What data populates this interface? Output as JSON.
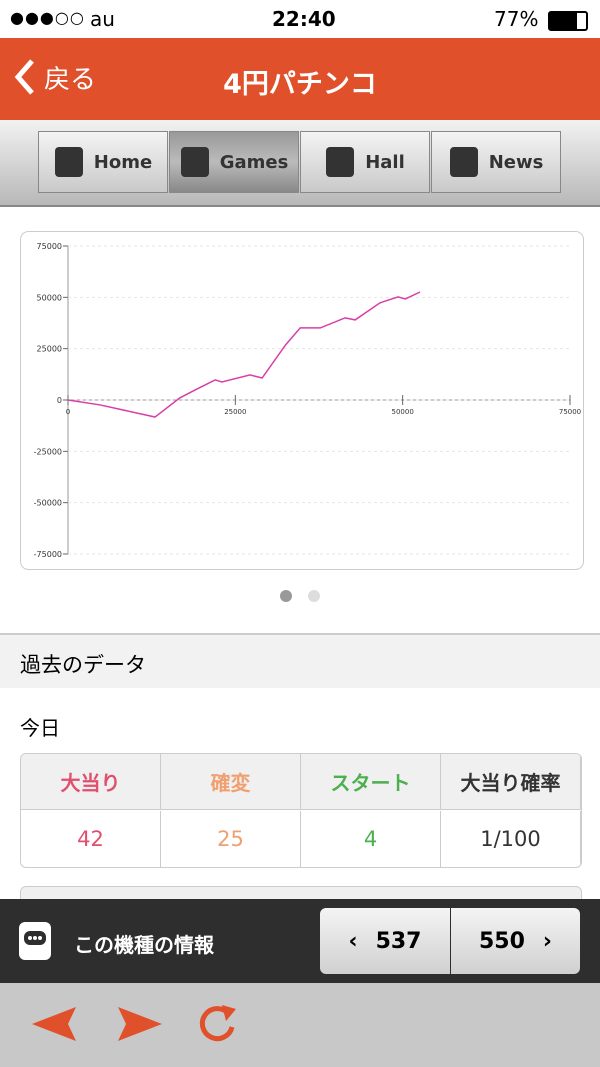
{
  "status_bar": {
    "carrier": "au",
    "time": "22:40",
    "battery": "77%"
  },
  "nav": {
    "back": "戻る",
    "title": "4円パチンコ"
  },
  "tabs": [
    "Home",
    "Games",
    "Hall",
    "News"
  ],
  "chart_data": {
    "type": "line",
    "x": [
      0,
      4800,
      13000,
      16700,
      19000,
      22000,
      23000,
      27200,
      29000,
      32500,
      34700,
      37700,
      41400,
      42900,
      46600,
      49300,
      50400,
      52600
    ],
    "series": [
      {
        "color": "#d63fa8",
        "values": [
          0,
          -2400,
          -8300,
          1000,
          4900,
          9800,
          8800,
          12200,
          10700,
          26800,
          35100,
          35100,
          40000,
          39000,
          47300,
          50200,
          49200,
          52600
        ]
      }
    ],
    "xlim": [
      0,
      75000
    ],
    "xticks": [
      0,
      25000,
      50000,
      75000
    ],
    "ylim": [
      -75000,
      75000
    ],
    "yticks": [
      75000,
      50000,
      25000,
      0,
      -25000,
      -50000,
      -75000
    ],
    "grid": true
  },
  "section_title": "過去のデータ",
  "period": "今日",
  "table": {
    "headers": [
      "大当り",
      "確変",
      "スタート",
      "大当り確率"
    ],
    "rows": [
      [
        42,
        25,
        4,
        "1/100"
      ]
    ]
  },
  "bottom_bar": {
    "label": "この機種の情報",
    "prev": 537,
    "next": 550
  }
}
